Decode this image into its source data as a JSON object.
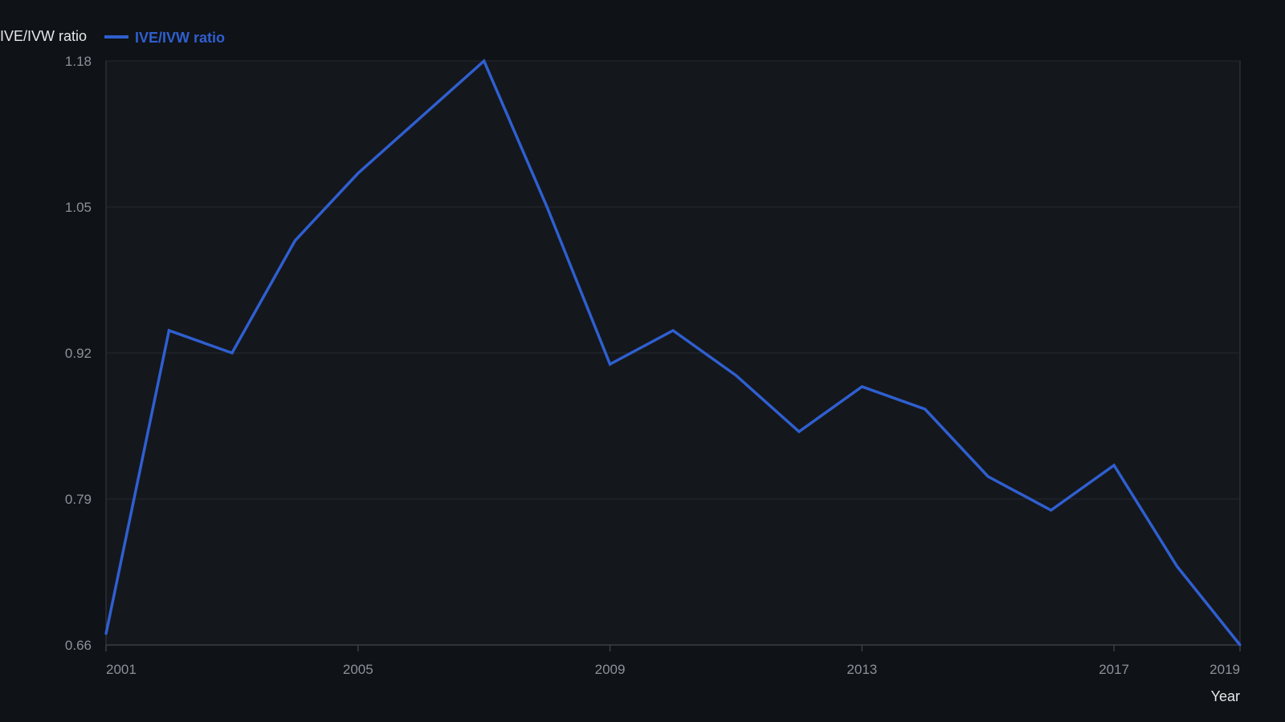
{
  "chart_data": {
    "type": "line",
    "ylabel": "IVE/IVW ratio",
    "xlabel": "Year",
    "x": [
      2001,
      2002,
      2003,
      2004,
      2005,
      2006,
      2007,
      2008,
      2009,
      2010,
      2011,
      2012,
      2013,
      2014,
      2015,
      2016,
      2017,
      2018,
      2019
    ],
    "x_ticks": [
      2001,
      2005,
      2009,
      2013,
      2017,
      2019
    ],
    "y_ticks": [
      0.66,
      0.79,
      0.92,
      1.05,
      1.18
    ],
    "xlim": [
      2001,
      2019
    ],
    "ylim": [
      0.66,
      1.18
    ],
    "grid": "horizontal",
    "legend_position": "top-left",
    "series": [
      {
        "name": "IVE/IVW ratio",
        "color": "#2f5fd0",
        "values": [
          0.67,
          0.94,
          0.92,
          1.02,
          1.08,
          1.13,
          1.18,
          1.05,
          0.91,
          0.94,
          0.9,
          0.85,
          0.89,
          0.87,
          0.81,
          0.78,
          0.82,
          0.73,
          0.66
        ]
      }
    ]
  },
  "colors": {
    "background": "#0f1216",
    "plot_background": "#14171c",
    "gridline": "#262a30",
    "axis": "#3a3f46",
    "tick_text": "#8b929b",
    "title_text": "#e6e8ea"
  }
}
